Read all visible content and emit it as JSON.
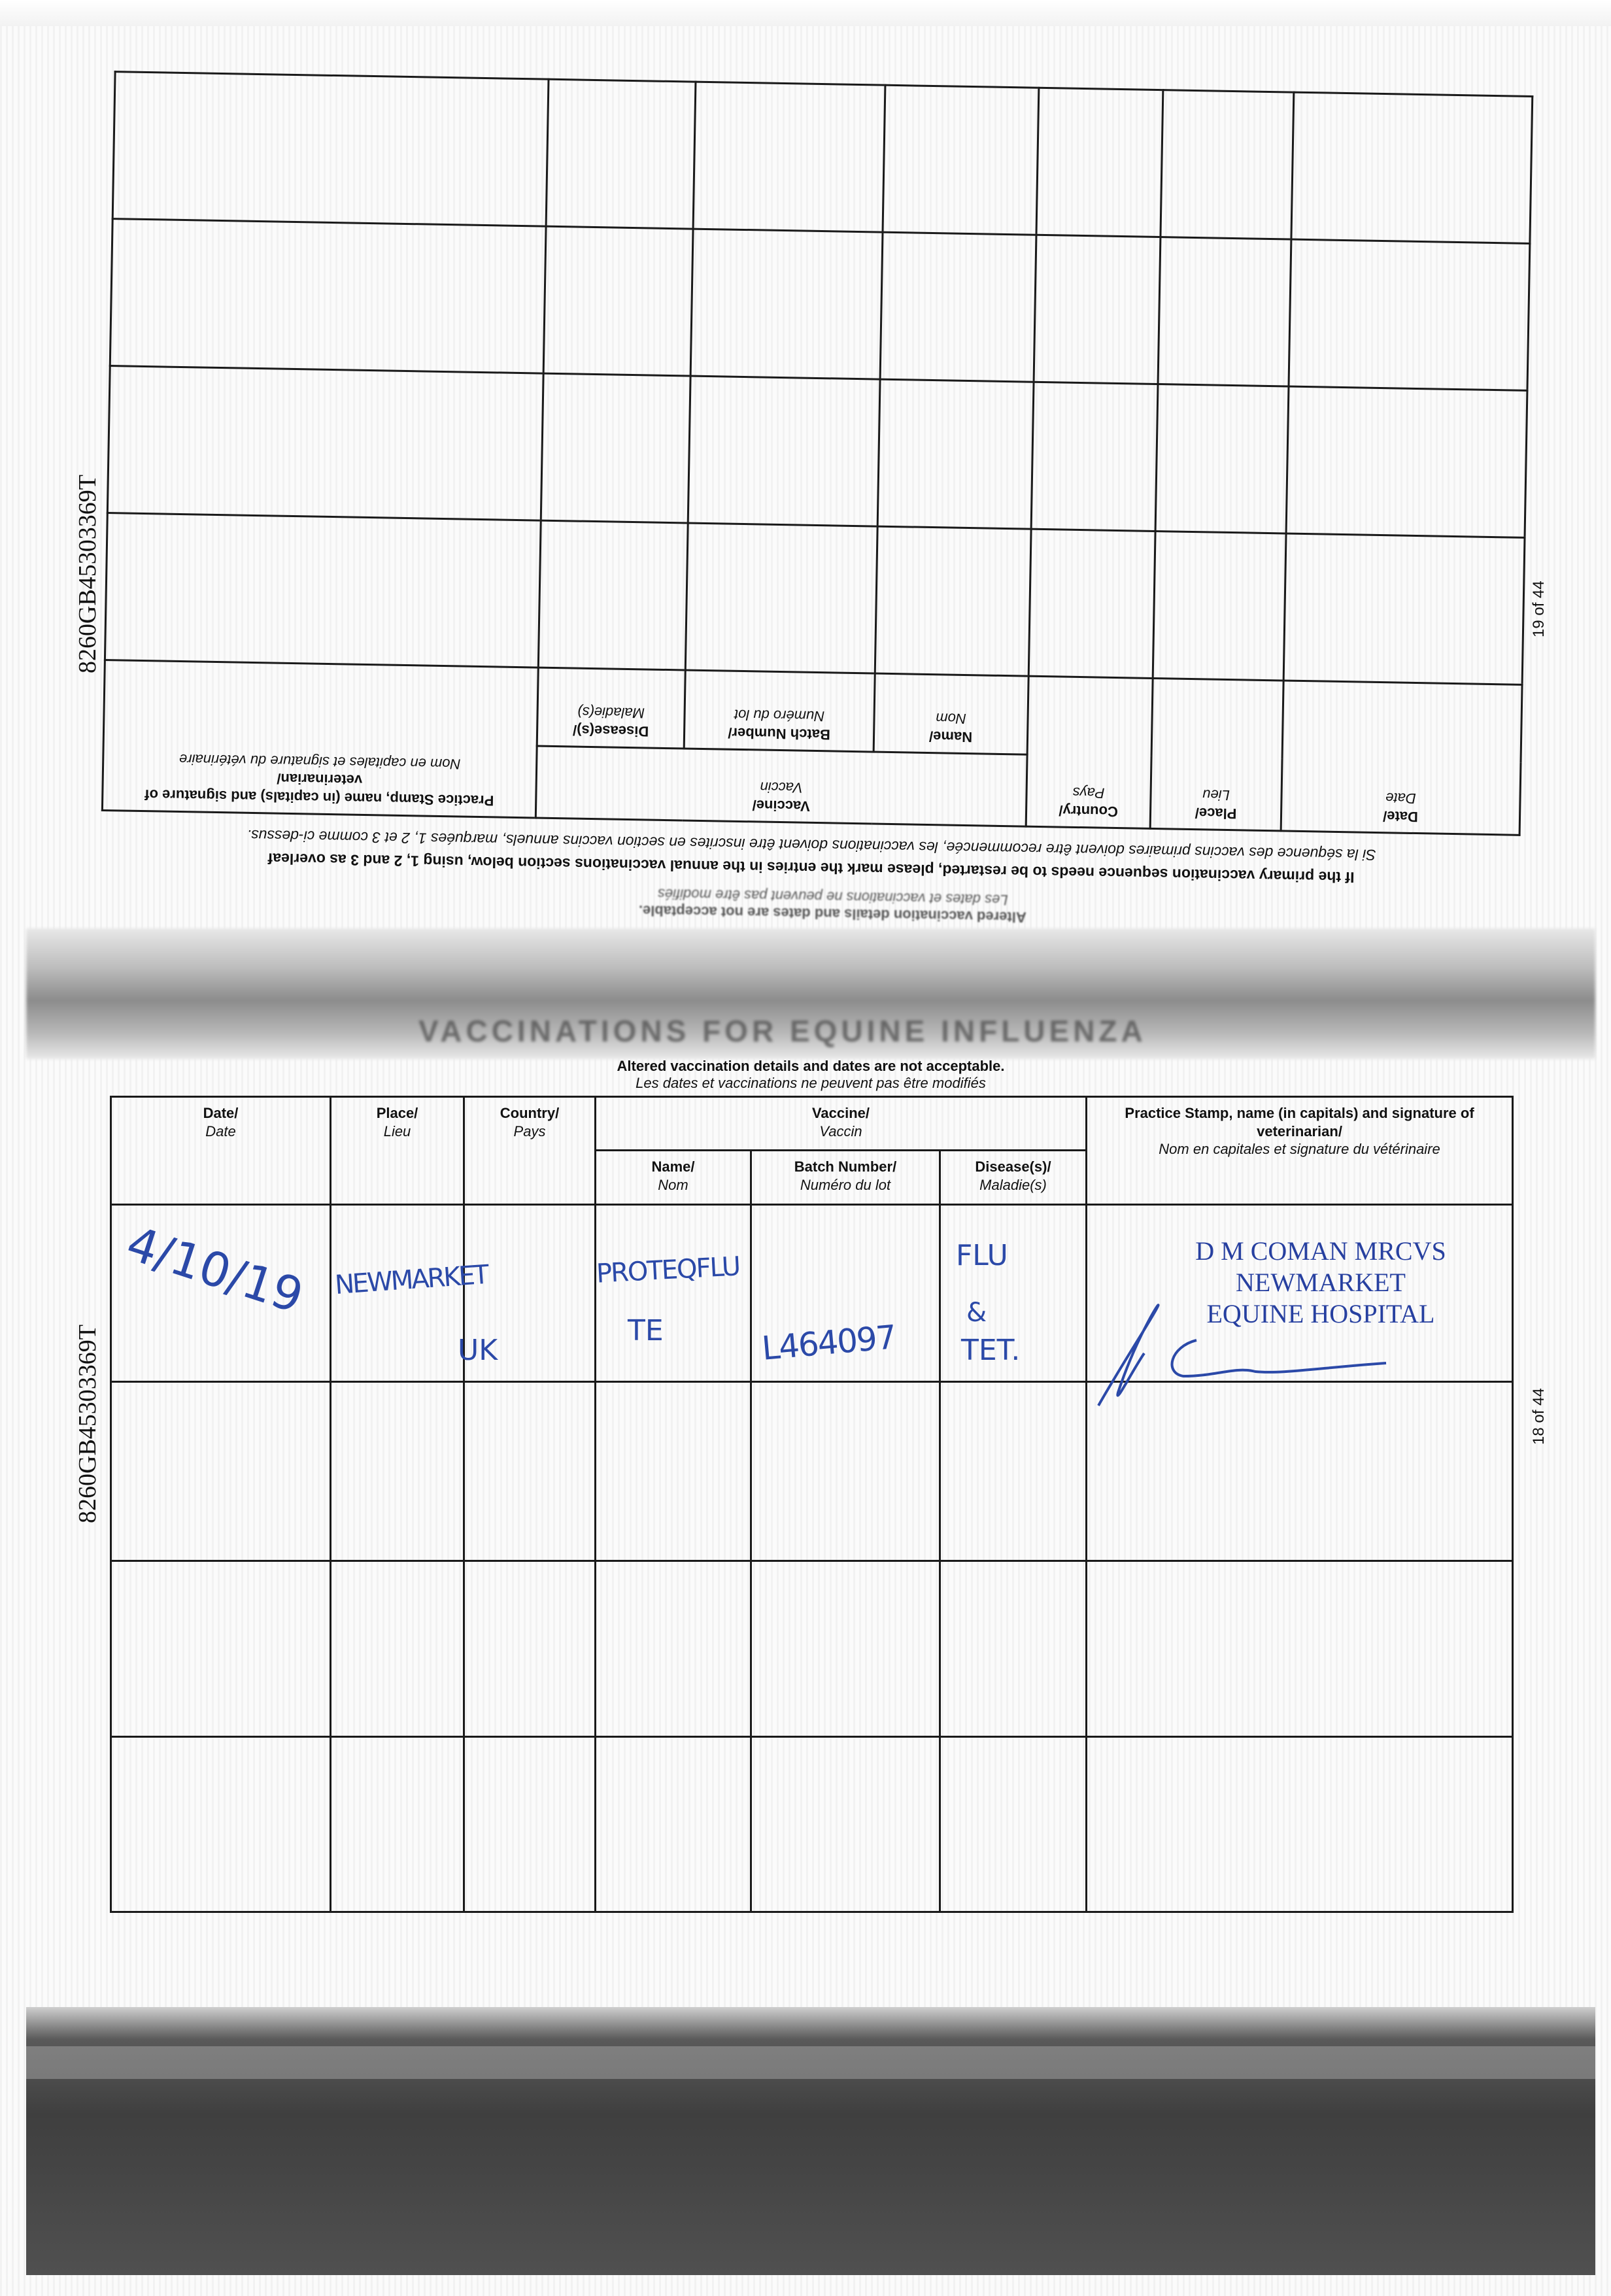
{
  "document": {
    "serial": "8260GB45303369T",
    "top_page": {
      "page_number": "19 of 44",
      "instructions": {
        "en": "If the primary vaccination sequence needs to be restarted, please mark the entries in the annual vaccinations section below, using 1, 2 and 3 as overleaf",
        "fr": "Si la séquence des vaccins primaires doivent être recommencée, les vaccinations doivent être inscrites en section vaccins annuels, marquées 1, 2 et 3 comme ci-dessus."
      },
      "ghost_notice": {
        "en": "Altered vaccination details and dates are not acceptable.",
        "fr": "Les dates et vaccinations ne peuvent pas être modifiés"
      }
    },
    "fold_title": "VACCINATIONS FOR EQUINE INFLUENZA",
    "bottom_page": {
      "page_number": "18 of 44",
      "notice": {
        "en": "Altered vaccination details and dates are not acceptable.",
        "fr": "Les dates et vaccinations ne peuvent pas être modifiés"
      }
    },
    "headers": {
      "date": {
        "en": "Date/",
        "fr": "Date"
      },
      "place": {
        "en": "Place/",
        "fr": "Lieu"
      },
      "country": {
        "en": "Country/",
        "fr": "Pays"
      },
      "vaccine": {
        "en": "Vaccine/",
        "fr": "Vaccin"
      },
      "name": {
        "en": "Name/",
        "fr": "Nom"
      },
      "batch": {
        "en": "Batch Number/",
        "fr": "Numéro du lot"
      },
      "disease": {
        "en": "Disease(s)/",
        "fr": "Maladie(s)"
      },
      "practice": {
        "en": "Practice Stamp, name (in capitals) and signature of veterinarian/",
        "fr": "Nom en capitales et signature du vétérinaire"
      }
    },
    "entry": {
      "date": "4/10/19",
      "place": "NEWMARKET",
      "country": "UK",
      "vaccine_name_1": "PROTEQFLU",
      "vaccine_name_2": "TE",
      "batch": "L464097",
      "disease_1": "FLU",
      "disease_2": "&",
      "disease_3": "TET.",
      "stamp": [
        "D M COMAN MRCVS",
        "NEWMARKET",
        "EQUINE HOSPITAL"
      ]
    },
    "ink_color": "#2b49a8"
  }
}
